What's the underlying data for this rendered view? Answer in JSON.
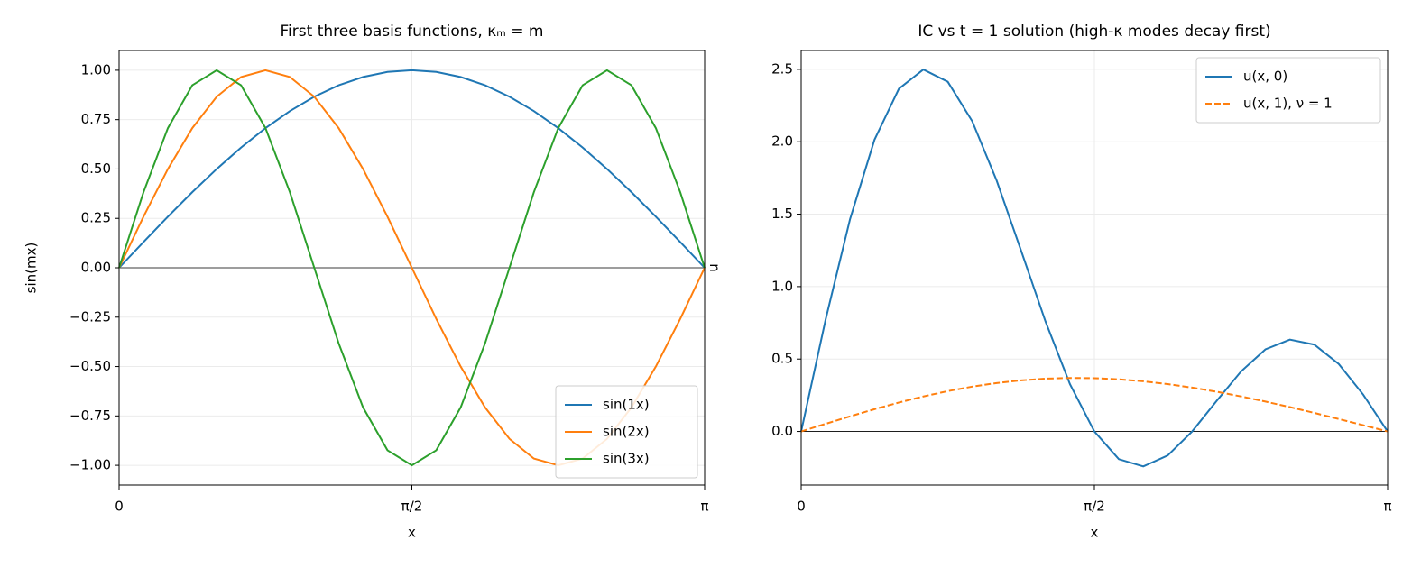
{
  "chart_data": [
    {
      "type": "line",
      "title": "First three basis functions, κₘ = m",
      "xlabel": "x",
      "ylabel": "sin(mx)",
      "x": [
        0,
        0.1309,
        0.2618,
        0.3927,
        0.5236,
        0.6545,
        0.7854,
        0.9163,
        1.0472,
        1.1781,
        1.309,
        1.4399,
        1.5708,
        1.7017,
        1.8326,
        1.9635,
        2.0944,
        2.2253,
        2.3562,
        2.4871,
        2.618,
        2.7489,
        2.8798,
        3.0107,
        3.1416
      ],
      "series": [
        {
          "name": "sin(1x)",
          "color": "#1f77b4",
          "linestyle": "solid",
          "values": [
            0,
            0.1305,
            0.2588,
            0.3827,
            0.5,
            0.6088,
            0.7071,
            0.7934,
            0.866,
            0.9239,
            0.9659,
            0.9914,
            1,
            0.9914,
            0.9659,
            0.9239,
            0.866,
            0.7934,
            0.7071,
            0.6088,
            0.5,
            0.3827,
            0.2588,
            0.1305,
            0
          ]
        },
        {
          "name": "sin(2x)",
          "color": "#ff7f0e",
          "linestyle": "solid",
          "values": [
            0,
            0.2588,
            0.5,
            0.7071,
            0.866,
            0.9659,
            1,
            0.9659,
            0.866,
            0.7071,
            0.5,
            0.2588,
            0,
            -0.2588,
            -0.5,
            -0.7071,
            -0.866,
            -0.9659,
            -1,
            -0.9659,
            -0.866,
            -0.7071,
            -0.5,
            -0.2588,
            0
          ]
        },
        {
          "name": "sin(3x)",
          "color": "#2ca02c",
          "linestyle": "solid",
          "values": [
            0,
            0.3827,
            0.7071,
            0.9239,
            1,
            0.9239,
            0.7071,
            0.3827,
            0,
            -0.3827,
            -0.7071,
            -0.9239,
            -1,
            -0.9239,
            -0.7071,
            -0.3827,
            0,
            0.3827,
            0.7071,
            0.9239,
            1,
            0.9239,
            0.7071,
            0.3827,
            0
          ]
        }
      ],
      "xlim": [
        0,
        3.1416
      ],
      "xticks": [
        0,
        {
          "value": 1.5708,
          "label": "π/2"
        },
        {
          "value": 3.1416,
          "label": "π"
        }
      ],
      "ylim": [
        -1.1,
        1.1
      ],
      "yticks": [
        {
          "value": -1,
          "label": "−1.00"
        },
        {
          "value": -0.75,
          "label": "−0.75"
        },
        {
          "value": -0.5,
          "label": "−0.50"
        },
        {
          "value": -0.25,
          "label": "−0.25"
        },
        {
          "value": 0,
          "label": "0.00"
        },
        {
          "value": 0.25,
          "label": "0.25"
        },
        {
          "value": 0.5,
          "label": "0.50"
        },
        {
          "value": 0.75,
          "label": "0.75"
        },
        {
          "value": 1,
          "label": "1.00"
        }
      ],
      "grid": true,
      "zero_line": true,
      "legend": "lower right"
    },
    {
      "type": "line",
      "title": "IC vs t = 1 solution (high-κ modes decay first)",
      "xlabel": "x",
      "ylabel": "u",
      "x": [
        0,
        0.1309,
        0.2618,
        0.3927,
        0.5236,
        0.6545,
        0.7854,
        0.9163,
        1.0472,
        1.1781,
        1.309,
        1.4399,
        1.5708,
        1.7017,
        1.8326,
        1.9635,
        2.0944,
        2.2253,
        2.3562,
        2.4871,
        2.618,
        2.7489,
        2.8798,
        3.0107,
        3.1416
      ],
      "series": [
        {
          "name": "u(x, 0)",
          "color": "#1f77b4",
          "linestyle": "solid",
          "values": [
            0,
            0.772,
            1.4659,
            2.0137,
            2.366,
            2.4986,
            2.4142,
            2.142,
            1.732,
            1.2483,
            0.7588,
            0.3263,
            0,
            -0.1913,
            -0.2412,
            -0.1659,
            0,
            0.2102,
            0.4142,
            0.5668,
            0.634,
            0.5995,
            0.4659,
            0.2544,
            0
          ]
        },
        {
          "name": "u(x, 1), ν = 1",
          "color": "#ff7f0e",
          "linestyle": "dashed",
          "values": [
            0,
            0.0527,
            0.1044,
            0.1537,
            0.1998,
            0.2417,
            0.2784,
            0.3096,
            0.3344,
            0.3528,
            0.3646,
            0.3694,
            0.3679,
            0.36,
            0.3462,
            0.327,
            0.3028,
            0.2742,
            0.2418,
            0.2063,
            0.1682,
            0.1279,
            0.086,
            0.0433,
            0
          ]
        }
      ],
      "xlim": [
        0,
        3.1416
      ],
      "xticks": [
        0,
        {
          "value": 1.5708,
          "label": "π/2"
        },
        {
          "value": 3.1416,
          "label": "π"
        }
      ],
      "ylim": [
        -0.37,
        2.63
      ],
      "yticks": [
        {
          "value": 0,
          "label": "0.0"
        },
        0.5,
        {
          "value": 1,
          "label": "1.0"
        },
        1.5,
        {
          "value": 2,
          "label": "2.0"
        },
        2.5
      ],
      "grid": true,
      "zero_line": true,
      "legend": "upper right"
    }
  ]
}
